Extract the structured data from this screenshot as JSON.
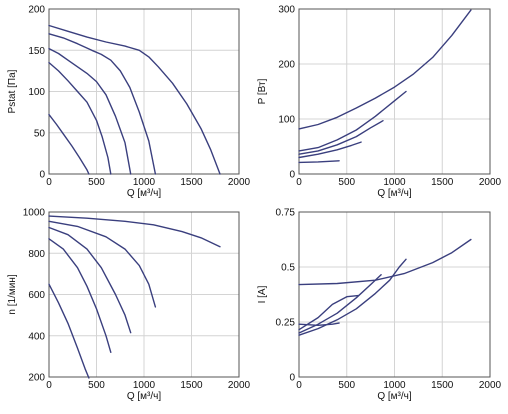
{
  "style": {
    "line_color": "#3a3f7e",
    "grid_color": "#d4d4d4"
  },
  "chart_data": [
    {
      "type": "line",
      "xlabel": "Q [м³/ч]",
      "ylabel": "Pstat [Па]",
      "xlim": [
        0,
        2000
      ],
      "ylim": [
        0,
        200
      ],
      "xticks": [
        0,
        500,
        1000,
        1500,
        2000
      ],
      "yticks": [
        0,
        50,
        100,
        150,
        200
      ],
      "grid": true,
      "series": [
        {
          "points": [
            [
              0,
              180
            ],
            [
              200,
              173
            ],
            [
              400,
              166
            ],
            [
              600,
              160
            ],
            [
              800,
              155
            ],
            [
              950,
              150
            ],
            [
              1050,
              142
            ],
            [
              1150,
              130
            ],
            [
              1300,
              110
            ],
            [
              1450,
              85
            ],
            [
              1600,
              55
            ],
            [
              1700,
              30
            ],
            [
              1800,
              0
            ]
          ]
        },
        {
          "points": [
            [
              0,
              170
            ],
            [
              150,
              165
            ],
            [
              300,
              158
            ],
            [
              450,
              150
            ],
            [
              550,
              145
            ],
            [
              650,
              138
            ],
            [
              750,
              125
            ],
            [
              850,
              105
            ],
            [
              950,
              75
            ],
            [
              1050,
              40
            ],
            [
              1120,
              0
            ]
          ]
        },
        {
          "points": [
            [
              0,
              152
            ],
            [
              100,
              146
            ],
            [
              200,
              138
            ],
            [
              300,
              130
            ],
            [
              400,
              122
            ],
            [
              500,
              112
            ],
            [
              600,
              96
            ],
            [
              700,
              70
            ],
            [
              800,
              38
            ],
            [
              860,
              0
            ]
          ]
        },
        {
          "points": [
            [
              0,
              135
            ],
            [
              100,
              125
            ],
            [
              200,
              113
            ],
            [
              300,
              100
            ],
            [
              400,
              87
            ],
            [
              500,
              65
            ],
            [
              560,
              45
            ],
            [
              620,
              20
            ],
            [
              650,
              0
            ]
          ]
        },
        {
          "points": [
            [
              0,
              72
            ],
            [
              80,
              60
            ],
            [
              160,
              47
            ],
            [
              240,
              34
            ],
            [
              320,
              20
            ],
            [
              400,
              5
            ],
            [
              420,
              0
            ]
          ]
        }
      ]
    },
    {
      "type": "line",
      "xlabel": "Q [м³/ч]",
      "ylabel": "P [Вт]",
      "xlim": [
        0,
        2000
      ],
      "ylim": [
        0,
        300
      ],
      "xticks": [
        0,
        500,
        1000,
        1500,
        2000
      ],
      "yticks": [
        0,
        100,
        200,
        300
      ],
      "grid": true,
      "series": [
        {
          "points": [
            [
              0,
              82
            ],
            [
              200,
              90
            ],
            [
              400,
              103
            ],
            [
              600,
              120
            ],
            [
              800,
              138
            ],
            [
              1000,
              158
            ],
            [
              1200,
              182
            ],
            [
              1400,
              212
            ],
            [
              1600,
              252
            ],
            [
              1800,
              298
            ]
          ]
        },
        {
          "points": [
            [
              0,
              42
            ],
            [
              200,
              48
            ],
            [
              400,
              62
            ],
            [
              600,
              80
            ],
            [
              800,
              105
            ],
            [
              1000,
              133
            ],
            [
              1120,
              150
            ]
          ]
        },
        {
          "points": [
            [
              0,
              36
            ],
            [
              200,
              42
            ],
            [
              400,
              53
            ],
            [
              600,
              68
            ],
            [
              750,
              84
            ],
            [
              880,
              97
            ]
          ]
        },
        {
          "points": [
            [
              0,
              30
            ],
            [
              200,
              36
            ],
            [
              400,
              44
            ],
            [
              550,
              52
            ],
            [
              650,
              58
            ]
          ]
        },
        {
          "points": [
            [
              0,
              21
            ],
            [
              200,
              22
            ],
            [
              420,
              24
            ]
          ]
        }
      ]
    },
    {
      "type": "line",
      "xlabel": "Q [м³/ч]",
      "ylabel": "n [1/мин]",
      "xlim": [
        0,
        2000
      ],
      "ylim": [
        200,
        1000
      ],
      "xticks": [
        0,
        500,
        1000,
        1500,
        2000
      ],
      "yticks": [
        200,
        400,
        600,
        800,
        1000
      ],
      "grid": true,
      "series": [
        {
          "points": [
            [
              0,
              980
            ],
            [
              400,
              970
            ],
            [
              800,
              955
            ],
            [
              1100,
              938
            ],
            [
              1400,
              905
            ],
            [
              1600,
              875
            ],
            [
              1800,
              832
            ]
          ]
        },
        {
          "points": [
            [
              0,
              955
            ],
            [
              300,
              930
            ],
            [
              600,
              880
            ],
            [
              800,
              820
            ],
            [
              950,
              740
            ],
            [
              1050,
              650
            ],
            [
              1120,
              540
            ]
          ]
        },
        {
          "points": [
            [
              0,
              925
            ],
            [
              200,
              890
            ],
            [
              400,
              820
            ],
            [
              550,
              730
            ],
            [
              700,
              600
            ],
            [
              800,
              500
            ],
            [
              860,
              415
            ]
          ]
        },
        {
          "points": [
            [
              0,
              870
            ],
            [
              150,
              820
            ],
            [
              300,
              730
            ],
            [
              400,
              640
            ],
            [
              500,
              530
            ],
            [
              600,
              400
            ],
            [
              650,
              320
            ]
          ]
        },
        {
          "points": [
            [
              0,
              650
            ],
            [
              100,
              560
            ],
            [
              200,
              460
            ],
            [
              300,
              340
            ],
            [
              380,
              240
            ],
            [
              420,
              195
            ]
          ]
        }
      ]
    },
    {
      "type": "line",
      "xlabel": "Q [м³/ч]",
      "ylabel": "I [A]",
      "xlim": [
        0,
        2000
      ],
      "ylim": [
        0,
        0.75
      ],
      "xticks": [
        0,
        500,
        1000,
        1500,
        2000
      ],
      "yticks": [
        0,
        0.25,
        0.5,
        0.75
      ],
      "grid": true,
      "series": [
        {
          "points": [
            [
              0,
              0.42
            ],
            [
              400,
              0.425
            ],
            [
              800,
              0.44
            ],
            [
              1100,
              0.47
            ],
            [
              1400,
              0.52
            ],
            [
              1600,
              0.565
            ],
            [
              1800,
              0.625
            ]
          ]
        },
        {
          "points": [
            [
              0,
              0.19
            ],
            [
              200,
              0.22
            ],
            [
              400,
              0.26
            ],
            [
              600,
              0.31
            ],
            [
              800,
              0.38
            ],
            [
              950,
              0.44
            ],
            [
              1050,
              0.5
            ],
            [
              1120,
              0.535
            ]
          ]
        },
        {
          "points": [
            [
              0,
              0.2
            ],
            [
              200,
              0.24
            ],
            [
              400,
              0.29
            ],
            [
              600,
              0.36
            ],
            [
              750,
              0.42
            ],
            [
              860,
              0.465
            ]
          ]
        },
        {
          "points": [
            [
              0,
              0.215
            ],
            [
              200,
              0.27
            ],
            [
              350,
              0.33
            ],
            [
              500,
              0.365
            ],
            [
              620,
              0.37
            ]
          ]
        },
        {
          "points": [
            [
              0,
              0.24
            ],
            [
              200,
              0.235
            ],
            [
              350,
              0.24
            ],
            [
              420,
              0.245
            ]
          ]
        }
      ]
    }
  ]
}
